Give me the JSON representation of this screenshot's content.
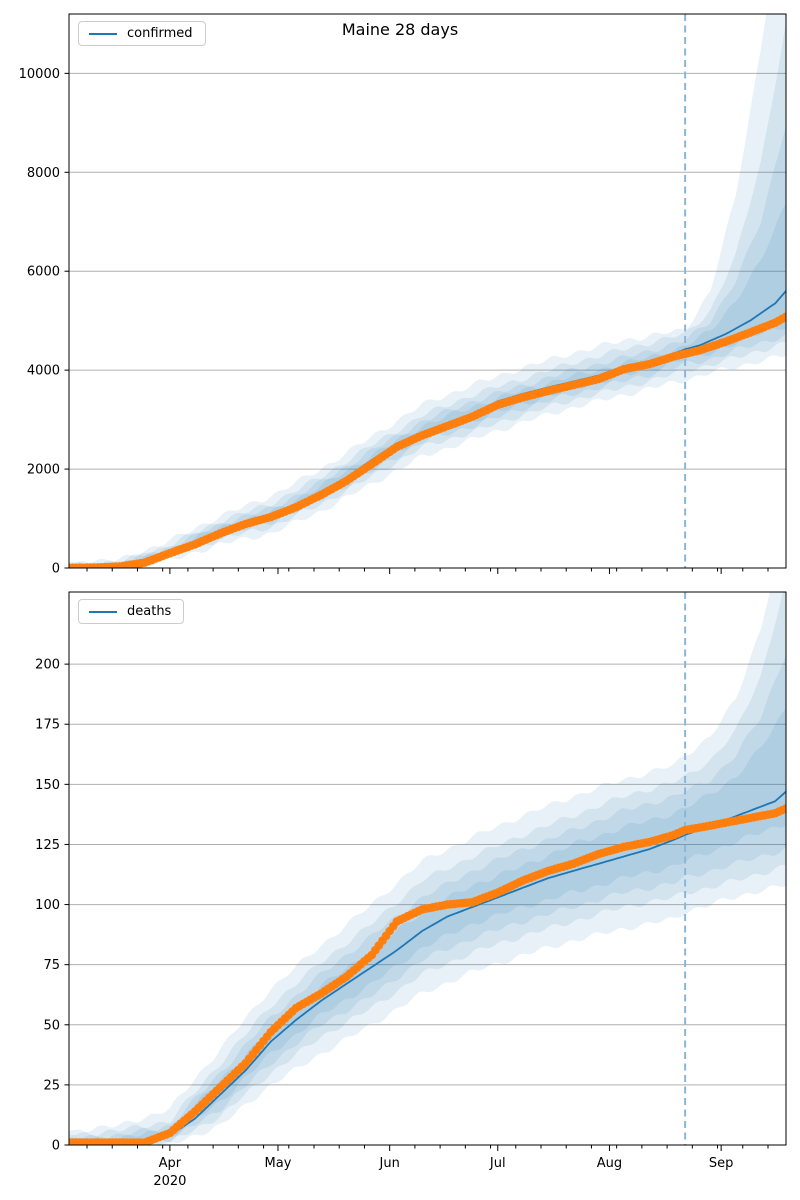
{
  "figure": {
    "title": "Maine 28 days",
    "year_label": "2020",
    "background": "#ffffff"
  },
  "colors": {
    "forecast_line": "#1f77b4",
    "observed_dots": "#ff7f0e",
    "uncertainty_band": "#1f77b4",
    "band_opacity": 0.1,
    "forecast_cutoff_line": "#8ab6d9",
    "gridline": "#b0b0b0",
    "axis_frame": "#000000",
    "tick_text": "#000000"
  },
  "x_axis": {
    "major_ticks": [
      {
        "day": 28,
        "label": "Apr",
        "year": "2020"
      },
      {
        "day": 58,
        "label": "May"
      },
      {
        "day": 89,
        "label": "Jun"
      },
      {
        "day": 119,
        "label": "Jul"
      },
      {
        "day": 150,
        "label": "Aug"
      },
      {
        "day": 181,
        "label": "Sep"
      }
    ],
    "minor_tick_start_day": 5,
    "minor_tick_step_days": 7,
    "day_range": [
      0,
      199
    ]
  },
  "chart_data": [
    {
      "type": "line",
      "title": "Maine 28 days",
      "legend": "confirmed",
      "legend_position": "upper-left",
      "ylabel": "",
      "ylim": [
        0,
        11200
      ],
      "yticks": [
        0,
        2000,
        4000,
        6000,
        8000,
        10000
      ],
      "grid": "horizontal",
      "forecast_start_day": 171,
      "line_days": [
        0,
        7,
        14,
        21,
        28,
        35,
        42,
        49,
        56,
        63,
        70,
        77,
        84,
        91,
        98,
        105,
        112,
        119,
        126,
        133,
        140,
        147,
        154,
        161,
        168,
        171,
        175,
        182,
        189,
        196,
        199
      ],
      "series": [
        {
          "name": "confirmed forecast",
          "style": "line",
          "values": [
            15,
            20,
            45,
            120,
            330,
            510,
            740,
            930,
            1080,
            1290,
            1540,
            1830,
            2180,
            2520,
            2740,
            2930,
            3120,
            3370,
            3520,
            3650,
            3770,
            3890,
            4080,
            4180,
            4340,
            4420,
            4500,
            4720,
            5000,
            5350,
            5600
          ]
        },
        {
          "name": "confirmed observed",
          "style": "dots",
          "values": [
            5,
            8,
            30,
            110,
            300,
            480,
            700,
            890,
            1030,
            1230,
            1480,
            1760,
            2100,
            2450,
            2680,
            2870,
            3060,
            3300,
            3450,
            3580,
            3700,
            3820,
            4020,
            4120,
            4280,
            4330,
            4400,
            4570,
            4760,
            4960,
            5080
          ]
        }
      ],
      "band_days": [
        0,
        14,
        28,
        42,
        56,
        70,
        84,
        98,
        112,
        126,
        140,
        154,
        168,
        171,
        178,
        185,
        192,
        199
      ],
      "bands": [
        {
          "lo": [
            5,
            10,
            300,
            690,
            990,
            1460,
            2050,
            2640,
            2970,
            3320,
            3630,
            3880,
            4150,
            4230,
            4350,
            4550,
            4750,
            4900
          ],
          "hi": [
            45,
            80,
            370,
            830,
            1120,
            1650,
            2270,
            2870,
            3260,
            3590,
            3880,
            4130,
            4400,
            4480,
            4800,
            5400,
            6200,
            7400
          ]
        },
        {
          "lo": [
            0,
            5,
            260,
            640,
            920,
            1380,
            1950,
            2550,
            2870,
            3230,
            3520,
            3780,
            4050,
            4120,
            4220,
            4400,
            4550,
            4700
          ],
          "hi": [
            60,
            100,
            420,
            890,
            1200,
            1730,
            2370,
            2960,
            3370,
            3690,
            4000,
            4250,
            4530,
            4600,
            5000,
            5800,
            7000,
            9000
          ]
        },
        {
          "lo": [
            0,
            0,
            220,
            590,
            830,
            1290,
            1850,
            2440,
            2750,
            3100,
            3400,
            3650,
            3920,
            4000,
            4100,
            4250,
            4400,
            4550
          ],
          "hi": [
            90,
            120,
            460,
            950,
            1300,
            1840,
            2480,
            3080,
            3500,
            3830,
            4150,
            4420,
            4680,
            4720,
            5200,
            6300,
            8200,
            11000
          ]
        },
        {
          "lo": [
            0,
            0,
            150,
            480,
            700,
            1150,
            1700,
            2250,
            2600,
            2950,
            3250,
            3500,
            3750,
            3800,
            3950,
            4050,
            4200,
            4300
          ],
          "hi": [
            120,
            160,
            550,
            1050,
            1450,
            2000,
            2650,
            3300,
            3700,
            4050,
            4350,
            4600,
            4780,
            4800,
            5600,
            7500,
            10500,
            14000
          ]
        }
      ]
    },
    {
      "type": "line",
      "title": "",
      "legend": "deaths",
      "legend_position": "upper-left",
      "ylabel": "",
      "ylim": [
        0,
        230
      ],
      "yticks": [
        0,
        25,
        50,
        75,
        100,
        125,
        150,
        175,
        200
      ],
      "grid": "horizontal",
      "forecast_start_day": 171,
      "line_days": [
        0,
        7,
        14,
        21,
        28,
        35,
        42,
        49,
        56,
        63,
        70,
        77,
        84,
        91,
        98,
        105,
        112,
        119,
        126,
        133,
        140,
        147,
        154,
        161,
        168,
        171,
        175,
        182,
        189,
        196,
        199
      ],
      "series": [
        {
          "name": "deaths forecast",
          "style": "line",
          "values": [
            0,
            0,
            1,
            1,
            4,
            11,
            21,
            31,
            43,
            52,
            60,
            67,
            74,
            81,
            89,
            95,
            99,
            103,
            107,
            111,
            114,
            117,
            120,
            123,
            127,
            129,
            131,
            135,
            139,
            143,
            147
          ]
        },
        {
          "name": "deaths observed",
          "style": "dots",
          "values": [
            1,
            1,
            1,
            1,
            5,
            14,
            24,
            34,
            47,
            57,
            63,
            70,
            79,
            93,
            98,
            100,
            101,
            105,
            110,
            114,
            117,
            121,
            124,
            126,
            129,
            131,
            132,
            134,
            136,
            138,
            140
          ]
        }
      ],
      "band_days": [
        0,
        14,
        28,
        42,
        56,
        70,
        84,
        98,
        112,
        126,
        140,
        154,
        168,
        171,
        178,
        185,
        192,
        199
      ],
      "bands": [
        {
          "lo": [
            0,
            0,
            3,
            18,
            38,
            54,
            67,
            82,
            92,
            99,
            105,
            111,
            116,
            118,
            122,
            126,
            130,
            134
          ],
          "hi": [
            2,
            3,
            6,
            27,
            48,
            66,
            81,
            97,
            108,
            116,
            125,
            132,
            138,
            140,
            146,
            153,
            165,
            182
          ]
        },
        {
          "lo": [
            0,
            0,
            2,
            15,
            34,
            50,
            62,
            77,
            86,
            93,
            99,
            105,
            109,
            111,
            114,
            117,
            120,
            123
          ],
          "hi": [
            3,
            4,
            8,
            30,
            53,
            71,
            87,
            103,
            114,
            123,
            131,
            139,
            145,
            147,
            152,
            162,
            178,
            205
          ]
        },
        {
          "lo": [
            0,
            0,
            1,
            12,
            30,
            45,
            57,
            71,
            80,
            87,
            93,
            99,
            103,
            105,
            107,
            110,
            113,
            116
          ],
          "hi": [
            4,
            6,
            10,
            34,
            58,
            76,
            92,
            110,
            120,
            129,
            137,
            145,
            151,
            153,
            160,
            172,
            195,
            235
          ]
        },
        {
          "lo": [
            0,
            0,
            0,
            8,
            25,
            38,
            50,
            63,
            72,
            79,
            85,
            90,
            94,
            97,
            100,
            103,
            106,
            108
          ],
          "hi": [
            6,
            8,
            15,
            40,
            65,
            83,
            100,
            118,
            128,
            137,
            145,
            152,
            158,
            162,
            170,
            185,
            215,
            260
          ]
        }
      ]
    }
  ]
}
